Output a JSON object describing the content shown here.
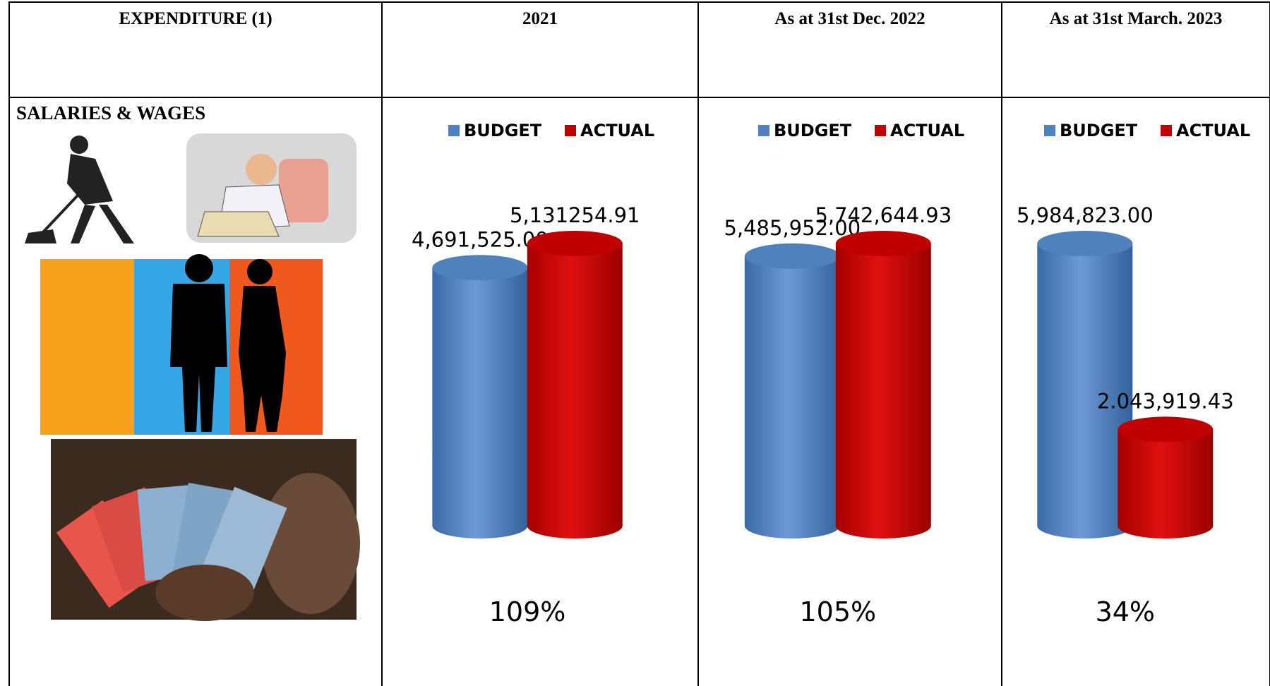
{
  "table": {
    "header": [
      "EXPENDITURE (1)",
      "2021",
      "As at 31st Dec. 2022",
      "As at 31st March. 2023"
    ],
    "row_label": "SALARIES & WAGES"
  },
  "chart_data": [
    {
      "type": "bar",
      "series": [
        {
          "name": "BUDGET",
          "color": "#4f81bd",
          "values": [
            4691525.0
          ],
          "value_labels": [
            "4,691,525.00"
          ]
        },
        {
          "name": "ACTUAL",
          "color": "#c00000",
          "values": [
            5131254.91
          ],
          "value_labels": [
            "5,131254.91"
          ]
        }
      ],
      "annotation": "109%"
    },
    {
      "type": "bar",
      "series": [
        {
          "name": "BUDGET",
          "color": "#4f81bd",
          "values": [
            5485952.0
          ],
          "value_labels": [
            "5,485,952.00"
          ]
        },
        {
          "name": "ACTUAL",
          "color": "#c00000",
          "values": [
            5742644.93
          ],
          "value_labels": [
            "5,742,644.93"
          ]
        }
      ],
      "annotation": "105%"
    },
    {
      "type": "bar",
      "series": [
        {
          "name": "BUDGET",
          "color": "#4f81bd",
          "values": [
            5984823.0
          ],
          "value_labels": [
            "5,984,823.00"
          ]
        },
        {
          "name": "ACTUAL",
          "color": "#c00000",
          "values": [
            2043919.43
          ],
          "value_labels": [
            "2.043,919.43"
          ]
        }
      ],
      "annotation": "34%"
    }
  ]
}
